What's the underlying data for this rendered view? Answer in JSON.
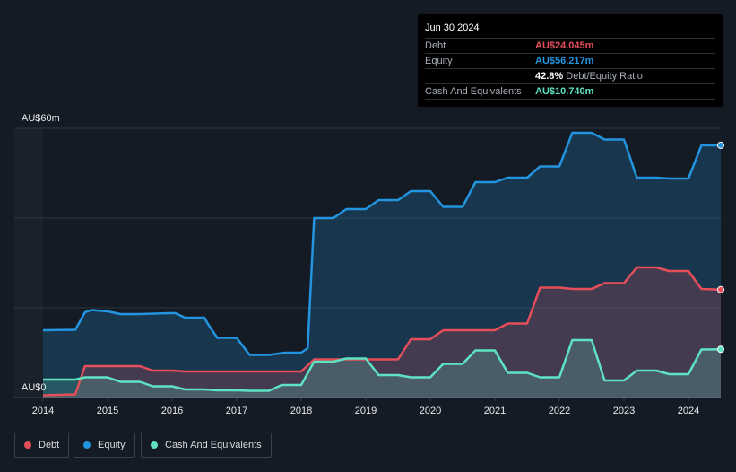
{
  "chart_data": {
    "type": "area",
    "currency_unit": "AU$",
    "ylim": [
      0,
      60
    ],
    "xlim": [
      2014.0,
      2024.5
    ],
    "y_tick_labels": [
      {
        "value": 60,
        "label": "AU$60m"
      },
      {
        "value": 0,
        "label": "AU$0"
      }
    ],
    "x_tick_labels": [
      "2014",
      "2015",
      "2016",
      "2017",
      "2018",
      "2019",
      "2020",
      "2021",
      "2022",
      "2023",
      "2024"
    ],
    "x_tick_values": [
      2014,
      2015,
      2016,
      2017,
      2018,
      2019,
      2020,
      2021,
      2022,
      2023,
      2024
    ],
    "grid_values": [
      20,
      40,
      60
    ],
    "series": [
      {
        "name": "Equity",
        "color": "#2394df",
        "x": [
          2014.0,
          2014.5,
          2014.65,
          2014.75,
          2015.0,
          2015.2,
          2015.5,
          2015.95,
          2016.05,
          2016.2,
          2016.5,
          2016.55,
          2016.7,
          2017.0,
          2017.2,
          2017.5,
          2017.75,
          2018.0,
          2018.1,
          2018.2,
          2018.5,
          2018.7,
          2019.0,
          2019.2,
          2019.5,
          2019.7,
          2020.0,
          2020.2,
          2020.5,
          2020.7,
          2021.0,
          2021.2,
          2021.5,
          2021.7,
          2022.0,
          2022.2,
          2022.5,
          2022.7,
          2023.0,
          2023.2,
          2023.5,
          2023.7,
          2024.0,
          2024.2,
          2024.5
        ],
        "values": [
          15.0,
          15.1,
          19.0,
          19.5,
          19.2,
          18.6,
          18.6,
          18.8,
          18.8,
          17.8,
          17.8,
          16.5,
          13.3,
          13.3,
          9.5,
          9.5,
          10.0,
          10.0,
          11.0,
          40.0,
          40.0,
          42.0,
          42.0,
          44.0,
          44.0,
          46.0,
          46.0,
          42.5,
          42.5,
          48.0,
          48.0,
          49.0,
          49.0,
          51.5,
          51.5,
          59.0,
          59.0,
          57.5,
          57.5,
          49.0,
          49.0,
          48.8,
          48.8,
          56.2,
          56.217
        ]
      },
      {
        "name": "Debt",
        "color": "#e64f5a",
        "x": [
          2014.0,
          2014.5,
          2014.65,
          2015.0,
          2015.5,
          2015.7,
          2016.0,
          2016.2,
          2016.7,
          2017.0,
          2017.5,
          2018.0,
          2018.2,
          2018.5,
          2018.7,
          2019.0,
          2019.5,
          2019.7,
          2020.0,
          2020.2,
          2020.5,
          2020.8,
          2021.0,
          2021.2,
          2021.5,
          2021.7,
          2022.0,
          2022.2,
          2022.5,
          2022.7,
          2023.0,
          2023.2,
          2023.5,
          2023.7,
          2024.0,
          2024.2,
          2024.5
        ],
        "values": [
          0.5,
          0.7,
          7.0,
          7.0,
          7.0,
          6.0,
          6.0,
          5.8,
          5.8,
          5.8,
          5.8,
          5.8,
          8.5,
          8.5,
          8.5,
          8.5,
          8.5,
          13.0,
          13.0,
          15.0,
          15.0,
          15.0,
          15.0,
          16.5,
          16.5,
          24.5,
          24.5,
          24.2,
          24.2,
          25.5,
          25.5,
          29.0,
          29.0,
          28.2,
          28.2,
          24.2,
          24.045
        ]
      },
      {
        "name": "Cash And Equivalents",
        "color": "#5ee3c2",
        "x": [
          2014.0,
          2014.5,
          2014.65,
          2015.0,
          2015.2,
          2015.5,
          2015.7,
          2016.0,
          2016.2,
          2016.5,
          2016.7,
          2017.0,
          2017.2,
          2017.5,
          2017.7,
          2018.0,
          2018.2,
          2018.5,
          2018.7,
          2019.0,
          2019.2,
          2019.5,
          2019.7,
          2020.0,
          2020.2,
          2020.5,
          2020.7,
          2021.0,
          2021.2,
          2021.5,
          2021.7,
          2022.0,
          2022.2,
          2022.5,
          2022.7,
          2023.0,
          2023.2,
          2023.5,
          2023.7,
          2024.0,
          2024.2,
          2024.5
        ],
        "values": [
          4.0,
          4.0,
          4.5,
          4.5,
          3.5,
          3.5,
          2.5,
          2.5,
          1.8,
          1.8,
          1.6,
          1.6,
          1.5,
          1.5,
          2.8,
          2.8,
          8.0,
          8.0,
          8.7,
          8.7,
          5.0,
          5.0,
          4.5,
          4.5,
          7.5,
          7.5,
          10.5,
          10.5,
          5.5,
          5.5,
          4.5,
          4.5,
          12.8,
          12.8,
          3.8,
          3.8,
          6.0,
          6.0,
          5.2,
          5.2,
          10.7,
          10.74
        ]
      }
    ]
  },
  "tooltip": {
    "date": "Jun 30 2024",
    "debt_label": "Debt",
    "debt_value": "AU$24.045m",
    "equity_label": "Equity",
    "equity_value": "AU$56.217m",
    "ratio_value": "42.8%",
    "ratio_text": "Debt/Equity Ratio",
    "cash_label": "Cash And Equivalents",
    "cash_value": "AU$10.740m"
  },
  "legend": {
    "debt": "Debt",
    "equity": "Equity",
    "cash": "Cash And Equivalents"
  },
  "colors": {
    "background": "#151b24",
    "debt": "#e64f5a",
    "equity": "#2394df",
    "cash": "#5ee3c2"
  }
}
